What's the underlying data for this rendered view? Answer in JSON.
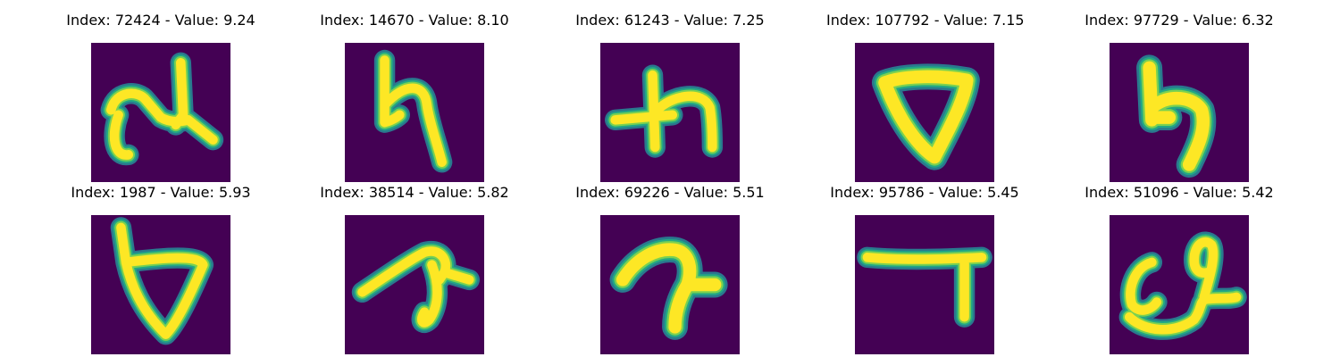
{
  "colors": {
    "background": "#440154",
    "stroke_core": "#fde725",
    "stroke_mid": "#7ad151",
    "stroke_edge": "#22a884",
    "stroke_outer": "#2a788e"
  },
  "panels": [
    {
      "index": "72424",
      "value": "9.24",
      "title": "Index: 72424 - Value: 9.24"
    },
    {
      "index": "14670",
      "value": "8.10",
      "title": "Index: 14670 - Value: 8.10"
    },
    {
      "index": "61243",
      "value": "7.25",
      "title": "Index: 61243 - Value: 7.25"
    },
    {
      "index": "107792",
      "value": "7.15",
      "title": "Index: 107792 - Value: 7.15"
    },
    {
      "index": "97729",
      "value": "6.32",
      "title": "Index: 97729 - Value: 6.32"
    },
    {
      "index": "1987",
      "value": "5.93",
      "title": "Index: 1987 - Value: 5.93"
    },
    {
      "index": "38514",
      "value": "5.82",
      "title": "Index: 38514 - Value: 5.82"
    },
    {
      "index": "69226",
      "value": "5.51",
      "title": "Index: 69226 - Value: 5.51"
    },
    {
      "index": "95786",
      "value": "5.45",
      "title": "Index: 95786 - Value: 5.45"
    },
    {
      "index": "51096",
      "value": "5.42",
      "title": "Index: 51096 - Value: 5.42"
    }
  ]
}
